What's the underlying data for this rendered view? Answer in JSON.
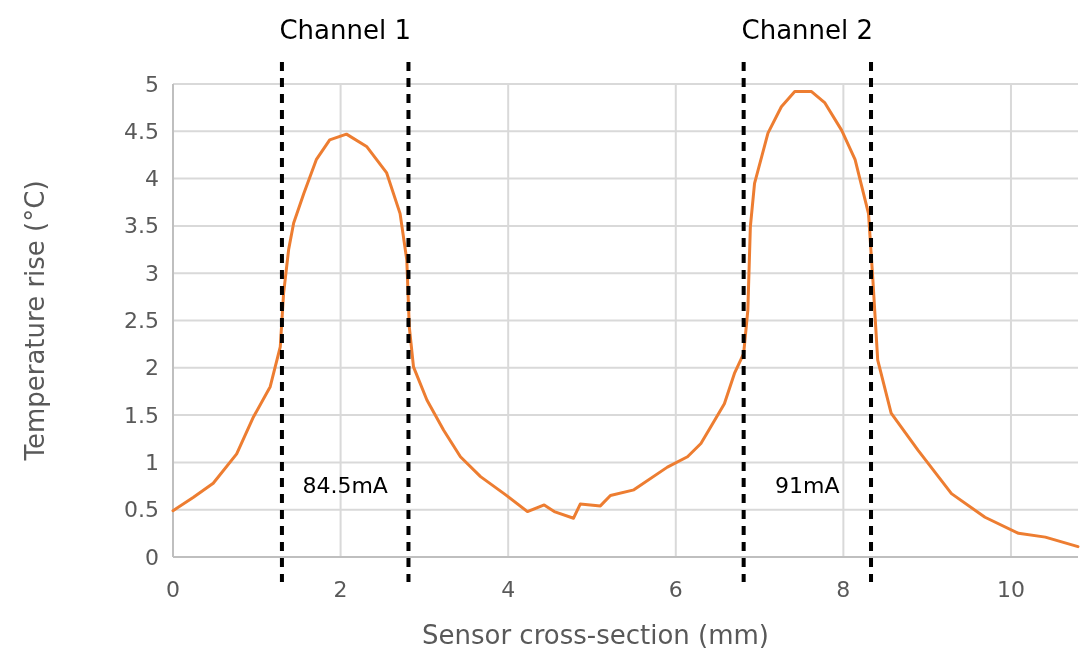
{
  "chart_data": {
    "type": "line",
    "xlabel": "Sensor cross-section (mm)",
    "ylabel": "Temperature rise (°C)",
    "xlim": [
      0,
      10.8
    ],
    "xticks": [
      0,
      2,
      4,
      6,
      8,
      10
    ],
    "ylim": [
      0,
      5
    ],
    "yticks": [
      0,
      0.5,
      1,
      1.5,
      2,
      2.5,
      3,
      3.5,
      4,
      4.5,
      5
    ],
    "grid": true,
    "series": [
      {
        "color": "#ed7d31",
        "x": [
          0,
          0.24,
          0.48,
          0.76,
          0.96,
          1.16,
          1.28,
          1.32,
          1.38,
          1.44,
          1.56,
          1.71,
          1.87,
          2.07,
          2.31,
          2.55,
          2.71,
          2.79,
          2.82,
          2.87,
          3.03,
          3.23,
          3.43,
          3.67,
          3.95,
          4.23,
          4.43,
          4.55,
          4.78,
          4.86,
          5.1,
          5.22,
          5.5,
          5.9,
          6.14,
          6.3,
          6.42,
          6.58,
          6.7,
          6.81,
          6.86,
          6.89,
          6.94,
          7.1,
          7.26,
          7.42,
          7.62,
          7.78,
          7.98,
          8.14,
          8.3,
          8.35,
          8.41,
          8.57,
          8.89,
          9.29,
          9.69,
          10.09,
          10.41,
          10.8
        ],
        "values": [
          0.49,
          0.63,
          0.78,
          1.09,
          1.48,
          1.8,
          2.22,
          2.79,
          3.25,
          3.53,
          3.84,
          4.2,
          4.41,
          4.47,
          4.34,
          4.06,
          3.63,
          3.14,
          2.43,
          2.01,
          1.66,
          1.34,
          1.06,
          0.85,
          0.67,
          0.48,
          0.55,
          0.48,
          0.41,
          0.56,
          0.54,
          0.65,
          0.71,
          0.95,
          1.06,
          1.2,
          1.38,
          1.62,
          1.94,
          2.15,
          2.61,
          3.49,
          3.95,
          4.48,
          4.76,
          4.92,
          4.92,
          4.8,
          4.51,
          4.2,
          3.63,
          2.96,
          2.08,
          1.52,
          1.13,
          0.67,
          0.42,
          0.25,
          0.21,
          0.11
        ]
      }
    ],
    "ref_lines": [
      {
        "axis": "x",
        "value": 1.3,
        "color": "#000000",
        "line_style": "dashed"
      },
      {
        "axis": "x",
        "value": 2.81,
        "color": "#000000",
        "line_style": "dashed"
      },
      {
        "axis": "x",
        "value": 6.81,
        "color": "#000000",
        "line_style": "dashed"
      },
      {
        "axis": "x",
        "value": 8.33,
        "color": "#000000",
        "line_style": "dashed"
      }
    ],
    "annotations": [
      "Channel 1",
      "Channel 2",
      "84.5mA",
      "91mA"
    ]
  }
}
